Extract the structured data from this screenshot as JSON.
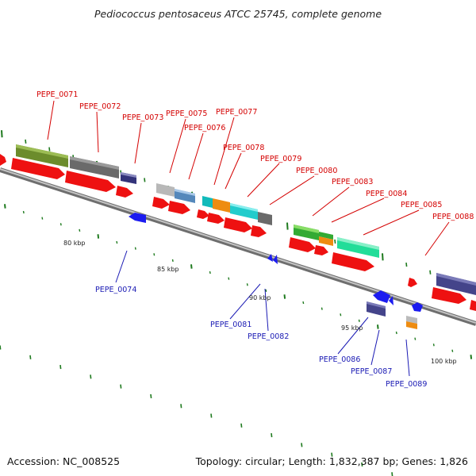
{
  "title": "Pediococcus pentosaceus ATCC 25745, complete genome",
  "footer": {
    "accession": "Accession: NC_008525",
    "summary": "Topology: circular; Length: 1,832,387 bp; Genes: 1,826"
  },
  "colors": {
    "label_forward": "#d40000",
    "label_reverse": "#1a1ab4",
    "backbone": "#8c8c8c",
    "cds_forward": "#ee1111",
    "cds_reverse": "#1c1cf0",
    "tick": "#1e7a1e"
  },
  "scale_labels": [
    "80 kbp",
    "85 kbp",
    "90 kbp",
    "95 kbp",
    "100 kbp"
  ],
  "gene_labels_forward": [
    "PEPE_0071",
    "PEPE_0072",
    "PEPE_0073",
    "PEPE_0075",
    "PEPE_0076",
    "PEPE_0077",
    "PEPE_0078",
    "PEPE_0079",
    "PEPE_0080",
    "PEPE_0083",
    "PEPE_0084",
    "PEPE_0085",
    "PEPE_0088"
  ],
  "gene_labels_reverse": [
    "PEPE_0074",
    "PEPE_0081",
    "PEPE_0082",
    "PEPE_0086",
    "PEPE_0087",
    "PEPE_0089"
  ]
}
